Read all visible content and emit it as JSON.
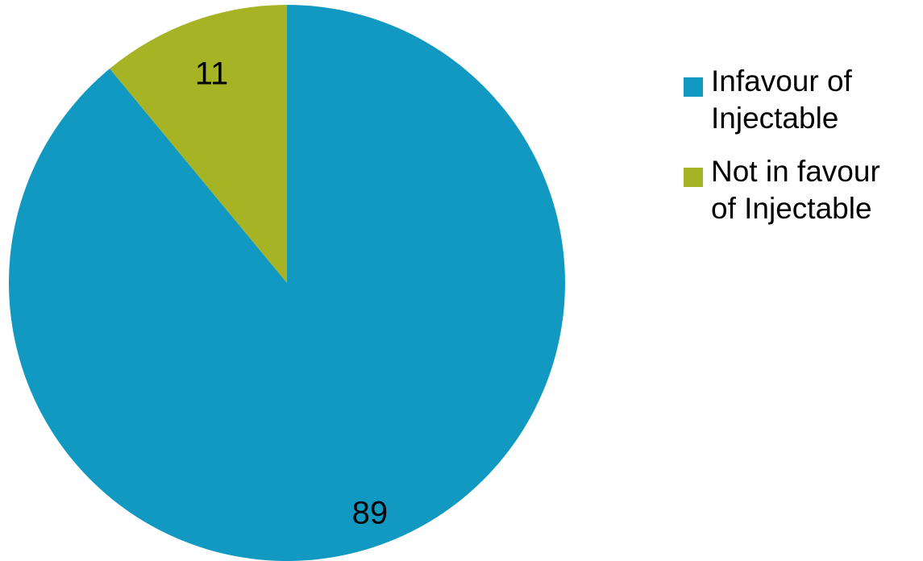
{
  "chart_data": {
    "type": "pie",
    "title": "",
    "categories": [
      "Infavour of Injectable",
      "Not in favour of Injectable"
    ],
    "values": [
      89,
      11
    ],
    "colors": [
      "#1199C2",
      "#A5B325"
    ],
    "data_labels": [
      "89",
      "11"
    ],
    "start_angle_deg": 0,
    "direction": "clockwise",
    "legend_position": "right-top",
    "legend": [
      {
        "line1": "Infavour of",
        "line2": "Injectable",
        "color": "#1199C2"
      },
      {
        "line1": "Not in favour",
        "line2": "of Injectable",
        "color": "#A5B325"
      }
    ]
  }
}
